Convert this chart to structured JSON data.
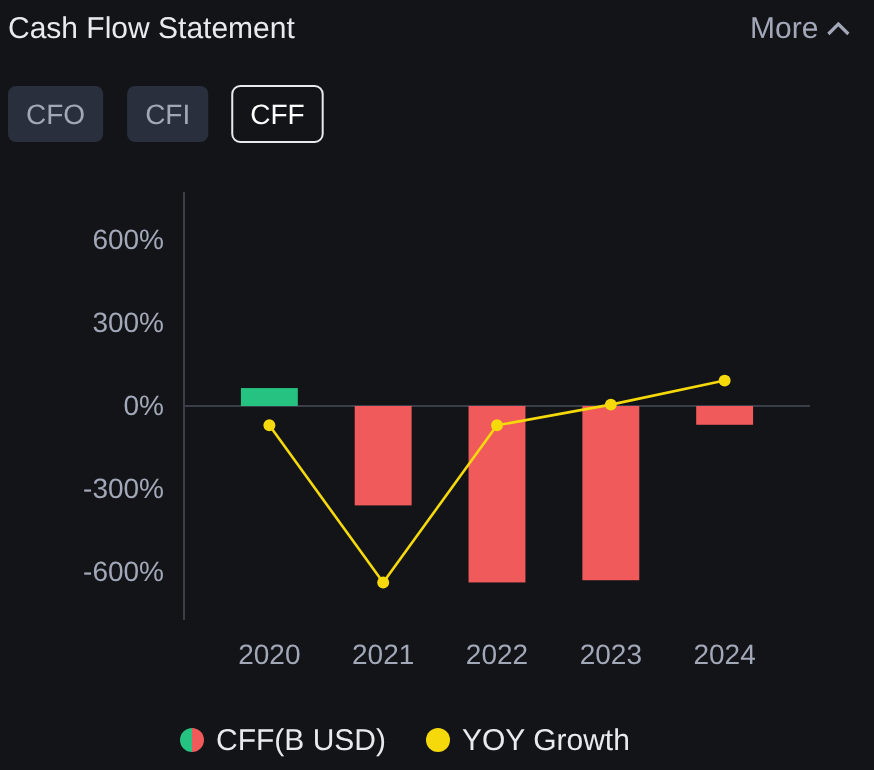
{
  "chart_data": {
    "type": "bar",
    "title": "Cash Flow Statement",
    "categories": [
      "2020",
      "2021",
      "2022",
      "2023",
      "2024"
    ],
    "series": [
      {
        "name": "CFF(B USD)",
        "colors": [
          "#26c281",
          "#f05a5a",
          "#f05a5a",
          "#f05a5a",
          "#f05a5a"
        ],
        "values": [
          65,
          -360,
          -639,
          -631,
          -68
        ]
      },
      {
        "name": "YOY Growth",
        "type": "line",
        "color": "#f5d90a",
        "values": [
          -70,
          -639,
          -70,
          5,
          92
        ]
      }
    ],
    "ylim": [
      -775,
      775
    ],
    "yticks": [
      {
        "value": -600,
        "label": "-600%"
      },
      {
        "value": -300,
        "label": "-300%"
      },
      {
        "value": 0,
        "label": "0%"
      },
      {
        "value": 300,
        "label": "300%"
      },
      {
        "value": 600,
        "label": "600%"
      }
    ],
    "grid": false,
    "ref_lines": [
      {
        "axis": "y",
        "value": 0
      }
    ],
    "legend": "bottom",
    "marker": "circle",
    "line_style": "solid",
    "annotations": [
      "More",
      "CFO",
      "CFI",
      "CFF"
    ]
  }
}
